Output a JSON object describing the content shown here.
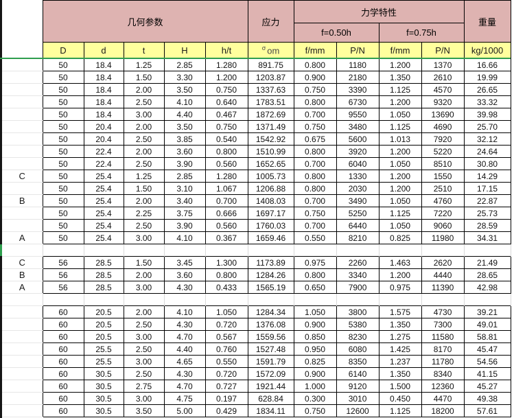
{
  "colors": {
    "header_pink": "#deb3b1",
    "header_yellow": "#ffff9d",
    "selection_green": "#2e9e4e",
    "border_black": "#000000",
    "gridline_gray": "#d9d9d9"
  },
  "table": {
    "group_headers": {
      "geometry": "几何参数",
      "stress": "应力",
      "mechanical": "力学特性",
      "weight": "重量"
    },
    "sub_headers": {
      "f050": "f=0.50h",
      "f075": "f=0.75h"
    },
    "columns": {
      "d_outer": "D",
      "d_inner": "d",
      "t": "t",
      "h_cap": "H",
      "h_t": "h/t",
      "f1": "f/mm",
      "p1": "P/N",
      "f2": "f/mm",
      "p2": "P/N",
      "kg": "kg/1000"
    },
    "stress_col": {
      "symbol": "σ",
      "label": "om"
    },
    "rows": [
      {
        "label": "",
        "cells": [
          "50",
          "18.4",
          "1.25",
          "2.85",
          "1.280",
          "891.75",
          "0.800",
          "1180",
          "1.200",
          "1370",
          "16.66"
        ]
      },
      {
        "label": "",
        "cells": [
          "50",
          "18.4",
          "1.50",
          "3.30",
          "1.200",
          "1203.87",
          "0.900",
          "2180",
          "1.350",
          "2610",
          "19.99"
        ]
      },
      {
        "label": "",
        "cells": [
          "50",
          "18.4",
          "2.00",
          "3.50",
          "0.750",
          "1337.63",
          "0.750",
          "3390",
          "1.125",
          "4570",
          "26.65"
        ]
      },
      {
        "label": "",
        "cells": [
          "50",
          "18.4",
          "2.50",
          "4.10",
          "0.640",
          "1783.51",
          "0.800",
          "6730",
          "1.200",
          "9320",
          "33.32"
        ]
      },
      {
        "label": "",
        "cells": [
          "50",
          "18.4",
          "3.00",
          "4.40",
          "0.467",
          "1872.69",
          "0.700",
          "9550",
          "1.050",
          "13690",
          "39.98"
        ]
      },
      {
        "label": "",
        "cells": [
          "50",
          "20.4",
          "2.00",
          "3.50",
          "0.750",
          "1371.49",
          "0.750",
          "3480",
          "1.125",
          "4690",
          "25.70"
        ]
      },
      {
        "label": "",
        "cells": [
          "50",
          "20.4",
          "2.50",
          "3.85",
          "0.540",
          "1542.92",
          "0.675",
          "5600",
          "1.013",
          "7920",
          "32.12"
        ]
      },
      {
        "label": "",
        "cells": [
          "50",
          "22.4",
          "2.00",
          "3.60",
          "0.800",
          "1510.99",
          "0.800",
          "3920",
          "1.200",
          "5220",
          "24.64"
        ]
      },
      {
        "label": "",
        "cells": [
          "50",
          "22.4",
          "2.50",
          "3.90",
          "0.560",
          "1652.65",
          "0.700",
          "6040",
          "1.050",
          "8510",
          "30.80"
        ]
      },
      {
        "label": "C",
        "cells": [
          "50",
          "25.4",
          "1.25",
          "2.85",
          "1.280",
          "1005.73",
          "0.800",
          "1330",
          "1.200",
          "1550",
          "14.29"
        ]
      },
      {
        "label": "",
        "cells": [
          "50",
          "25.4",
          "1.50",
          "3.10",
          "1.067",
          "1206.88",
          "0.800",
          "2030",
          "1.200",
          "2510",
          "17.15"
        ]
      },
      {
        "label": "B",
        "cells": [
          "50",
          "25.4",
          "2.00",
          "3.40",
          "0.700",
          "1408.03",
          "0.700",
          "3490",
          "1.050",
          "4760",
          "22.87"
        ]
      },
      {
        "label": "",
        "cells": [
          "50",
          "25.4",
          "2.25",
          "3.75",
          "0.666",
          "1697.17",
          "0.750",
          "5250",
          "1.125",
          "7220",
          "25.73"
        ]
      },
      {
        "label": "",
        "cells": [
          "50",
          "25.4",
          "2.50",
          "3.90",
          "0.560",
          "1760.03",
          "0.700",
          "6440",
          "1.050",
          "9060",
          "28.59"
        ]
      },
      {
        "label": "A",
        "cells": [
          "50",
          "25.4",
          "3.00",
          "4.10",
          "0.367",
          "1659.46",
          "0.550",
          "8210",
          "0.825",
          "11980",
          "34.31"
        ]
      },
      {
        "separator": true
      },
      {
        "label": "C",
        "cells": [
          "56",
          "28.5",
          "1.50",
          "3.45",
          "1.300",
          "1173.89",
          "0.975",
          "2260",
          "1.463",
          "2620",
          "21.49"
        ]
      },
      {
        "label": "B",
        "cells": [
          "56",
          "28.5",
          "2.00",
          "3.60",
          "0.800",
          "1284.26",
          "0.800",
          "3340",
          "1.200",
          "4440",
          "28.65"
        ]
      },
      {
        "label": "A",
        "cells": [
          "56",
          "28.5",
          "3.00",
          "4.30",
          "0.433",
          "1565.19",
          "0.650",
          "7900",
          "0.975",
          "11390",
          "42.98"
        ]
      },
      {
        "separator": true
      },
      {
        "label": "",
        "cells": [
          "60",
          "20.5",
          "2.00",
          "4.10",
          "1.050",
          "1284.34",
          "1.050",
          "3800",
          "1.575",
          "4730",
          "39.21"
        ]
      },
      {
        "label": "",
        "cells": [
          "60",
          "20.5",
          "2.50",
          "4.30",
          "0.720",
          "1376.08",
          "0.900",
          "5380",
          "1.350",
          "7300",
          "49.01"
        ]
      },
      {
        "label": "",
        "cells": [
          "60",
          "20.5",
          "3.00",
          "4.70",
          "0.567",
          "1559.56",
          "0.850",
          "8230",
          "1.275",
          "11580",
          "58.81"
        ]
      },
      {
        "label": "",
        "cells": [
          "60",
          "25.5",
          "2.50",
          "4.40",
          "0.760",
          "1527.48",
          "0.950",
          "6080",
          "1.425",
          "8170",
          "45.47"
        ]
      },
      {
        "label": "",
        "cells": [
          "60",
          "25.5",
          "3.00",
          "4.65",
          "0.550",
          "1591.79",
          "0.825",
          "8350",
          "1.237",
          "11780",
          "54.56"
        ]
      },
      {
        "label": "",
        "cells": [
          "60",
          "30.5",
          "2.50",
          "4.30",
          "0.720",
          "1572.09",
          "0.900",
          "6140",
          "1.350",
          "8340",
          "41.15"
        ]
      },
      {
        "label": "",
        "cells": [
          "60",
          "30.5",
          "2.75",
          "4.70",
          "0.727",
          "1921.44",
          "1.000",
          "9120",
          "1.500",
          "12360",
          "45.27"
        ]
      },
      {
        "label": "",
        "cells": [
          "60",
          "30.5",
          "3.00",
          "4.75",
          "0.197",
          "628.84",
          "0.300",
          "3010",
          "0.450",
          "4470",
          "49.38"
        ]
      },
      {
        "label": "",
        "cells": [
          "60",
          "30.5",
          "3.50",
          "5.00",
          "0.429",
          "1834.11",
          "0.750",
          "12600",
          "1.125",
          "18200",
          "57.61"
        ]
      }
    ]
  }
}
